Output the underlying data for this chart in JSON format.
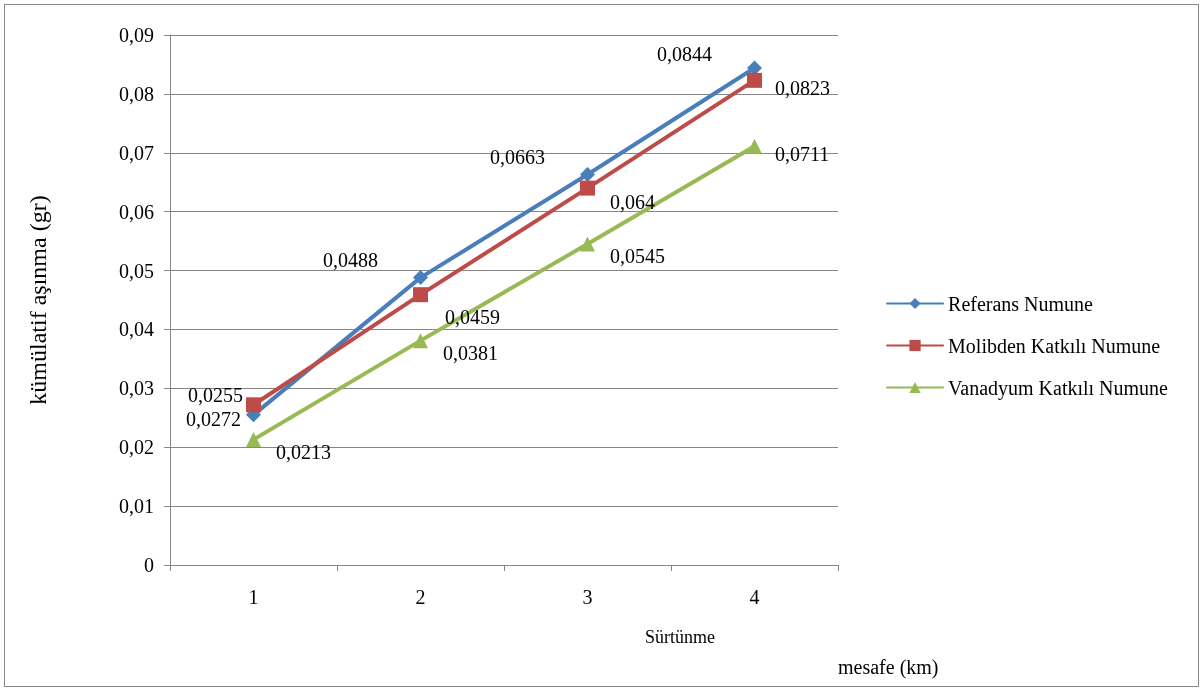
{
  "chart_data": {
    "type": "line",
    "ylabel": "kümülatif aşınma (gr)",
    "xlabel": "mesafe (km)",
    "annotations": [
      "Sürtünme"
    ],
    "categories": [
      "1",
      "2",
      "3",
      "4"
    ],
    "ylim": [
      0,
      0.09
    ],
    "yticks": [
      0,
      {
        "value": 0.01,
        "label": "0,01"
      },
      {
        "value": 0.02,
        "label": "0,02"
      },
      {
        "value": 0.03,
        "label": "0,03"
      },
      {
        "value": 0.04,
        "label": "0,04"
      },
      {
        "value": 0.05,
        "label": "0,05"
      },
      {
        "value": 0.06,
        "label": "0,06"
      },
      {
        "value": 0.07,
        "label": "0,07"
      },
      {
        "value": 0.08,
        "label": "0,08"
      },
      {
        "value": 0.09,
        "label": "0,09"
      }
    ],
    "grid": "y",
    "legend": "right",
    "line_style": "solid",
    "series": [
      {
        "name": "Referans Numune",
        "color": "#4a7ebb",
        "marker": "diamond",
        "values": [
          0.0255,
          0.0488,
          0.0663,
          0.0844
        ],
        "value_labels": [
          "0,0255",
          "0,0488",
          "0,0663",
          "0,0844"
        ]
      },
      {
        "name": "Molibden Katkılı Numune",
        "color": "#be4b48",
        "marker": "square",
        "values": [
          0.0272,
          0.0459,
          0.064,
          0.0823
        ],
        "value_labels": [
          "0,0272",
          "0,0459",
          "0,064",
          "0,0823"
        ]
      },
      {
        "name": "Vanadyum Katkılı Numune",
        "color": "#98b954",
        "marker": "triangle",
        "values": [
          0.0213,
          0.0381,
          0.0545,
          0.0711
        ],
        "value_labels": [
          "0,0213",
          "0,0381",
          "0,0545",
          "0,0711"
        ]
      }
    ]
  }
}
